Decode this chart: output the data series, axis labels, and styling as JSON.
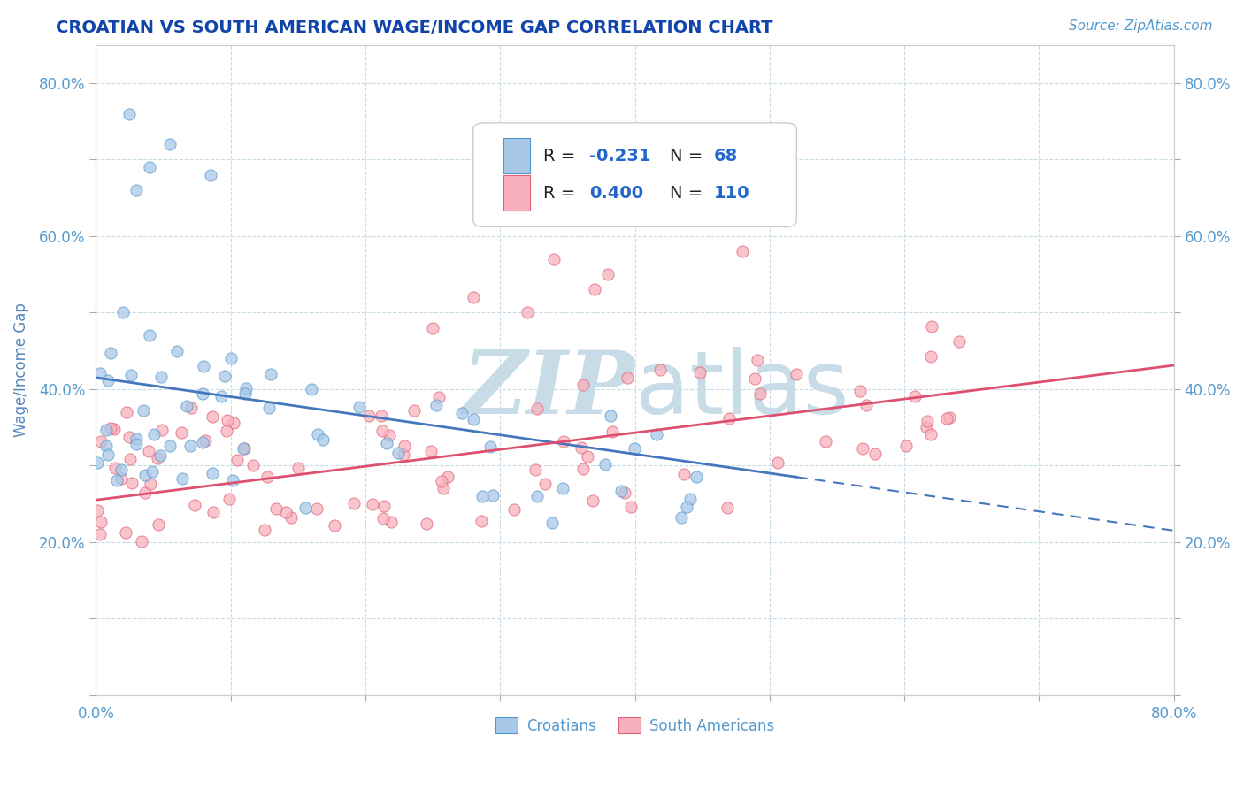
{
  "title": "CROATIAN VS SOUTH AMERICAN WAGE/INCOME GAP CORRELATION CHART",
  "source_text": "Source: ZipAtlas.com",
  "ylabel": "Wage/Income Gap",
  "xlim": [
    0.0,
    0.8
  ],
  "ylim": [
    0.0,
    0.85
  ],
  "croatian_color": "#a8c8e8",
  "south_american_color": "#f8b0bc",
  "croatian_edge_color": "#5599cc",
  "south_american_edge_color": "#e06075",
  "trend_croatian_color": "#4477bb",
  "trend_south_american_color": "#dd5070",
  "grid_color": "#c8dce8",
  "background_color": "#ffffff",
  "watermark_color": "#c8dce8",
  "legend_r_croatian": "R = -0.231",
  "legend_n_croatian": "N =  68",
  "legend_r_south_american": "R = 0.400",
  "legend_n_south_american": "N = 110",
  "title_color": "#1144aa",
  "axis_label_color": "#5588bb",
  "tick_color": "#5599cc",
  "legend_text_color": "#1144aa",
  "legend_num_color": "#2266cc"
}
